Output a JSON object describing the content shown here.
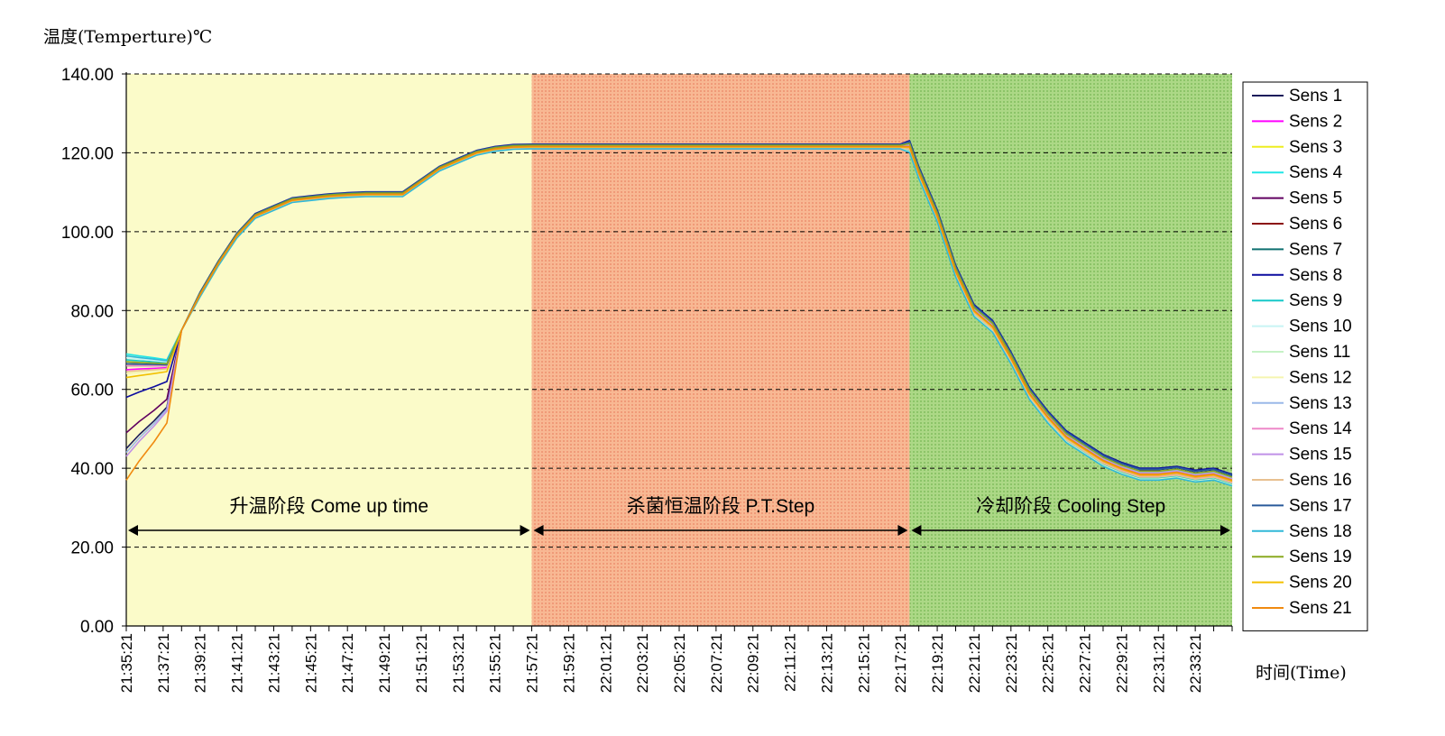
{
  "chart_data": {
    "type": "line",
    "title": "",
    "ylabel": "温度(Temperture)℃",
    "xlabel": "时间(Time)",
    "ylim": [
      0,
      140
    ],
    "yticks": [
      "0.00",
      "20.00",
      "40.00",
      "60.00",
      "80.00",
      "100.00",
      "120.00",
      "140.00"
    ],
    "grid": "horizontal dashed",
    "legend_position": "right",
    "x_minutes_range": [
      0,
      60
    ],
    "x_tick_labels": [
      "21:35:21",
      "21:37:21",
      "21:39:21",
      "21:41:21",
      "21:43:21",
      "21:45:21",
      "21:47:21",
      "21:49:21",
      "21:51:21",
      "21:53:21",
      "21:55:21",
      "21:57:21",
      "21:59:21",
      "22:01:21",
      "22:03:21",
      "22:05:21",
      "22:07:21",
      "22:09:21",
      "22:11:21",
      "22:13:21",
      "22:15:21",
      "22:17:21",
      "22:19:21",
      "22:21:21",
      "22:23:21",
      "22:25:21",
      "22:27:21",
      "22:29:21",
      "22:31:21",
      "22:33:21"
    ],
    "stages": [
      {
        "label": "升温阶段 Come up time",
        "start": 0,
        "end": 22,
        "color": "#fbfbc9"
      },
      {
        "label": "杀菌恒温阶段 P.T.Step",
        "start": 22,
        "end": 42.5,
        "color": "#f7b28a"
      },
      {
        "label": "冷却阶段 Cooling Step",
        "start": 42.5,
        "end": 60,
        "color": "#a5d47c"
      }
    ],
    "base_curve": {
      "x": [
        0,
        0.7,
        1.5,
        2.2,
        3,
        4,
        5,
        6,
        7,
        8,
        9,
        10,
        11,
        12,
        13,
        15,
        17,
        18,
        19,
        20,
        21,
        22,
        24,
        30,
        36,
        42,
        42.5,
        43,
        44,
        45,
        46,
        47,
        48,
        49,
        50,
        51,
        52,
        53,
        54,
        55,
        56,
        57,
        58,
        59,
        60
      ],
      "y": [
        66,
        66,
        66,
        66,
        75,
        84,
        92,
        99,
        104,
        106,
        108,
        108.5,
        109,
        109.3,
        109.5,
        109.5,
        116,
        118,
        120,
        121,
        121.5,
        121.6,
        121.6,
        121.6,
        121.6,
        121.6,
        121.6,
        115,
        104,
        90,
        80,
        76,
        68,
        59,
        53,
        48,
        45,
        42,
        40,
        38.5,
        38.5,
        39,
        38,
        38.5,
        37
      ]
    },
    "series": [
      {
        "name": "Sens 1",
        "color": "#1c1c5a",
        "offset": 0.4,
        "start": 45
      },
      {
        "name": "Sens 2",
        "color": "#ff00ff",
        "offset": -0.3,
        "start": 65
      },
      {
        "name": "Sens 3",
        "color": "#eded20",
        "offset": 0.2,
        "start": 67
      },
      {
        "name": "Sens 4",
        "color": "#20e6e6",
        "offset": 0.5,
        "start": 69
      },
      {
        "name": "Sens 5",
        "color": "#600060",
        "offset": -0.2,
        "start": 49
      },
      {
        "name": "Sens 6",
        "color": "#8b1010",
        "offset": 0.1,
        "start": 66.5
      },
      {
        "name": "Sens 7",
        "color": "#0f7070",
        "offset": -0.1,
        "start": 66
      },
      {
        "name": "Sens 8",
        "color": "#0b0b9f",
        "offset": 0.6,
        "start": 58
      },
      {
        "name": "Sens 9",
        "color": "#16c8c8",
        "offset": -0.4,
        "start": 67.5
      },
      {
        "name": "Sens 10",
        "color": "#c8f4f4",
        "offset": 0.3,
        "start": 68
      },
      {
        "name": "Sens 11",
        "color": "#c5f2c5",
        "offset": -0.5,
        "start": 67
      },
      {
        "name": "Sens 12",
        "color": "#f5f5b0",
        "offset": 0.0,
        "start": 64
      },
      {
        "name": "Sens 13",
        "color": "#9ab8e8",
        "offset": 0.2,
        "start": 44
      },
      {
        "name": "Sens 14",
        "color": "#ee88c8",
        "offset": -0.2,
        "start": 66
      },
      {
        "name": "Sens 15",
        "color": "#c090e8",
        "offset": 0.1,
        "start": 43
      },
      {
        "name": "Sens 16",
        "color": "#e8c090",
        "offset": -0.3,
        "start": 64.5
      },
      {
        "name": "Sens 17",
        "color": "#2a5a9a",
        "offset": 0.5,
        "start": 66.5
      },
      {
        "name": "Sens 18",
        "color": "#30b8d8",
        "offset": -0.6,
        "start": 68.5
      },
      {
        "name": "Sens 19",
        "color": "#8aaa20",
        "offset": 0.3,
        "start": 67
      },
      {
        "name": "Sens 20",
        "color": "#f2c000",
        "offset": -0.1,
        "start": 63
      },
      {
        "name": "Sens 21",
        "color": "#f08a10",
        "offset": 0.0,
        "start": 37
      }
    ]
  }
}
